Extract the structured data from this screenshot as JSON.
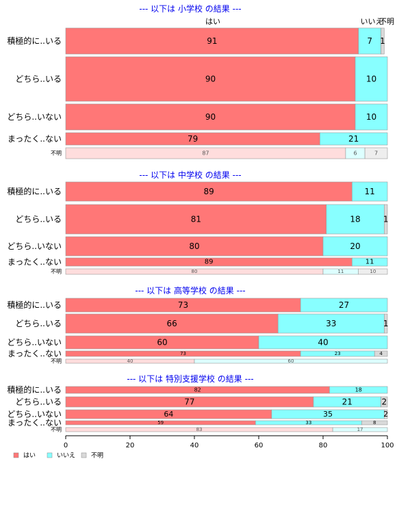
{
  "colors": {
    "yes": "#ff7777",
    "no": "#88ffff",
    "unknown": "#d9d9d9",
    "yes_light": "#ffdddd",
    "no_light": "#ddffff",
    "unknown_light": "#eeeeee",
    "title": "#0000ee"
  },
  "headers": {
    "yes": "はい",
    "no": "いいえ",
    "unknown": "不明"
  },
  "legend": [
    {
      "key": "yes",
      "label": "はい"
    },
    {
      "key": "no",
      "label": "いいえ"
    },
    {
      "key": "unknown",
      "label": "不明"
    }
  ],
  "chart_data": {
    "type": "bar",
    "orientation": "horizontal-stacked-100",
    "xlim": [
      0,
      100
    ],
    "ticks": [
      0,
      20,
      40,
      60,
      80,
      100
    ],
    "series_names": [
      "はい",
      "いいえ",
      "不明"
    ],
    "sections": [
      {
        "title": "--- 以下は 小学校 の結果 ---",
        "rows": [
          {
            "label": "積極的に..いる",
            "values": [
              91,
              7,
              1
            ],
            "labels": [
              "91",
              "7",
              "1"
            ]
          },
          {
            "label": "どちら..いる",
            "values": [
              90,
              10,
              0
            ],
            "labels": [
              "90",
              "10",
              ""
            ]
          },
          {
            "label": "どちら..いない",
            "values": [
              90,
              10,
              0
            ],
            "labels": [
              "90",
              "10",
              ""
            ]
          },
          {
            "label": "まったく..ない",
            "values": [
              79,
              21,
              0
            ],
            "labels": [
              "79",
              "21",
              ""
            ]
          },
          {
            "label": "不明",
            "values": [
              87,
              6,
              7
            ],
            "labels": [
              "87",
              "6",
              "7"
            ],
            "unknown_row": true
          }
        ]
      },
      {
        "title": "--- 以下は 中学校 の結果 ---",
        "rows": [
          {
            "label": "積極的に..いる",
            "values": [
              89,
              11,
              0
            ],
            "labels": [
              "89",
              "11",
              ""
            ]
          },
          {
            "label": "どちら..いる",
            "values": [
              81,
              18,
              1
            ],
            "labels": [
              "81",
              "18",
              "1"
            ]
          },
          {
            "label": "どちら..いない",
            "values": [
              80,
              20,
              0
            ],
            "labels": [
              "80",
              "20",
              ""
            ]
          },
          {
            "label": "まったく..ない",
            "values": [
              89,
              11,
              0
            ],
            "labels": [
              "89",
              "11",
              ""
            ]
          },
          {
            "label": "不明",
            "values": [
              80,
              11,
              10
            ],
            "labels": [
              "80",
              "11",
              "10"
            ],
            "unknown_row": true
          }
        ]
      },
      {
        "title": "--- 以下は 高等学校 の結果 ---",
        "rows": [
          {
            "label": "積極的に..いる",
            "values": [
              73,
              27,
              0
            ],
            "labels": [
              "73",
              "27",
              ""
            ]
          },
          {
            "label": "どちら..いる",
            "values": [
              66,
              33,
              1
            ],
            "labels": [
              "66",
              "33",
              "1"
            ]
          },
          {
            "label": "どちら..いない",
            "values": [
              60,
              40,
              0
            ],
            "labels": [
              "60",
              "40",
              ""
            ]
          },
          {
            "label": "まったく..ない",
            "values": [
              73,
              23,
              4
            ],
            "labels": [
              "73",
              "23",
              "4"
            ]
          },
          {
            "label": "不明",
            "values": [
              40,
              60,
              0
            ],
            "labels": [
              "40",
              "60",
              ""
            ],
            "unknown_row": true
          }
        ]
      },
      {
        "title": "--- 以下は 特別支援学校 の結果 ---",
        "rows": [
          {
            "label": "積極的に..いる",
            "values": [
              82,
              18,
              0
            ],
            "labels": [
              "82",
              "18",
              ""
            ]
          },
          {
            "label": "どちら..いる",
            "values": [
              77,
              21,
              2
            ],
            "labels": [
              "77",
              "21",
              "2"
            ]
          },
          {
            "label": "どちら..いない",
            "values": [
              64,
              35,
              2
            ],
            "labels": [
              "64",
              "35",
              "2"
            ]
          },
          {
            "label": "まったく..ない",
            "values": [
              59,
              33,
              8
            ],
            "labels": [
              "59",
              "33",
              "8"
            ]
          },
          {
            "label": "不明",
            "values": [
              83,
              17,
              0
            ],
            "labels": [
              "83",
              "17",
              ""
            ],
            "unknown_row": true
          }
        ]
      }
    ]
  }
}
